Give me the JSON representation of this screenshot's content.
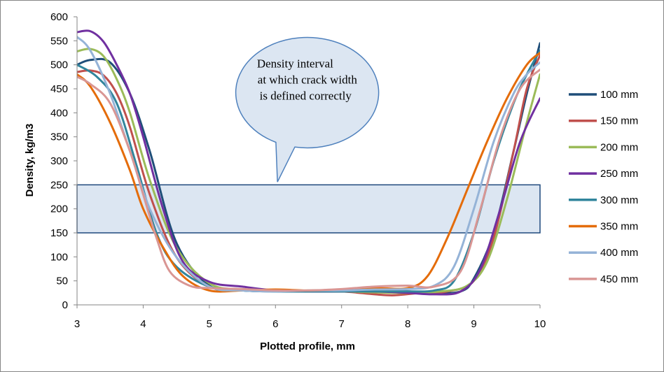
{
  "chart_data": {
    "type": "line",
    "xlabel": "Plotted profile, mm",
    "ylabel": "Density, kg/m3",
    "xlim": [
      3,
      10
    ],
    "ylim": [
      0,
      600
    ],
    "xticks": [
      3,
      4,
      5,
      6,
      7,
      8,
      9,
      10
    ],
    "yticks": [
      0,
      50,
      100,
      150,
      200,
      250,
      300,
      350,
      400,
      450,
      500,
      550,
      600
    ],
    "grid": false,
    "legend_position": "right",
    "band": {
      "y_min": 150,
      "y_max": 250,
      "fill": "#dce6f2",
      "stroke": "#1f497d"
    },
    "annotation": {
      "lines": [
        "Density interval",
        "at which crack width",
        "is defined correctly"
      ],
      "fill": "#dce6f2",
      "stroke": "#4f81bd"
    },
    "series": [
      {
        "name": "100 mm",
        "color": "#1f4e79",
        "x": [
          3,
          3.2,
          3.5,
          3.8,
          4.1,
          4.5,
          5,
          5.5,
          6,
          6.5,
          7,
          7.5,
          8,
          8.4,
          8.8,
          9,
          9.3,
          9.6,
          9.8,
          10
        ],
        "y": [
          500,
          510,
          505,
          440,
          320,
          130,
          40,
          30,
          28,
          28,
          28,
          28,
          28,
          25,
          28,
          55,
          150,
          320,
          440,
          545
        ]
      },
      {
        "name": "150 mm",
        "color": "#c0504d",
        "x": [
          3,
          3.2,
          3.4,
          3.6,
          3.8,
          4.1,
          4.5,
          5,
          5.5,
          6,
          6.5,
          7,
          7.5,
          7.8,
          8.2,
          8.6,
          9,
          9.3,
          9.6,
          9.8,
          10
        ],
        "y": [
          485,
          488,
          478,
          440,
          370,
          230,
          100,
          38,
          32,
          31,
          28,
          28,
          22,
          20,
          25,
          28,
          50,
          140,
          320,
          450,
          520
        ]
      },
      {
        "name": "200 mm",
        "color": "#9bbb59",
        "x": [
          3,
          3.2,
          3.4,
          3.6,
          3.8,
          4.1,
          4.5,
          5,
          5.5,
          6,
          6.5,
          7,
          7.5,
          8,
          8.5,
          8.9,
          9.2,
          9.5,
          9.8,
          10
        ],
        "y": [
          528,
          533,
          518,
          470,
          400,
          260,
          120,
          45,
          32,
          30,
          28,
          28,
          26,
          25,
          28,
          40,
          90,
          220,
          380,
          480
        ]
      },
      {
        "name": "250 mm",
        "color": "#7030a0",
        "x": [
          3,
          3.2,
          3.4,
          3.6,
          3.8,
          4,
          4.3,
          4.6,
          5,
          5.5,
          6,
          6.5,
          7,
          7.5,
          8,
          8.4,
          8.8,
          9.1,
          9.4,
          9.7,
          10
        ],
        "y": [
          568,
          570,
          548,
          500,
          440,
          350,
          200,
          90,
          48,
          38,
          30,
          28,
          28,
          28,
          25,
          22,
          28,
          75,
          200,
          340,
          430
        ]
      },
      {
        "name": "300 mm",
        "color": "#31859c",
        "x": [
          3,
          3.3,
          3.6,
          3.9,
          4.2,
          4.5,
          5,
          5.5,
          6,
          6.5,
          7,
          7.5,
          8,
          8.4,
          8.7,
          9,
          9.3,
          9.6,
          9.8,
          10
        ],
        "y": [
          500,
          475,
          420,
          290,
          150,
          80,
          38,
          30,
          28,
          28,
          28,
          28,
          28,
          30,
          50,
          150,
          300,
          420,
          480,
          530
        ]
      },
      {
        "name": "350 mm",
        "color": "#e46c0a",
        "x": [
          3,
          3.2,
          3.5,
          3.8,
          4,
          4.3,
          4.6,
          5,
          5.5,
          6,
          6.5,
          7,
          7.5,
          8,
          8.3,
          8.6,
          8.9,
          9.2,
          9.5,
          9.8,
          10
        ],
        "y": [
          480,
          455,
          380,
          280,
          200,
          120,
          60,
          30,
          30,
          32,
          30,
          32,
          35,
          35,
          60,
          140,
          240,
          340,
          430,
          500,
          525
        ]
      },
      {
        "name": "400 mm",
        "color": "#95b3d7",
        "x": [
          3,
          3.2,
          3.5,
          3.8,
          4.1,
          4.5,
          5,
          5.5,
          6,
          6.5,
          7,
          7.5,
          8,
          8.4,
          8.7,
          9,
          9.3,
          9.6,
          9.8,
          10
        ],
        "y": [
          558,
          530,
          440,
          320,
          200,
          100,
          38,
          30,
          28,
          30,
          30,
          32,
          33,
          40,
          80,
          200,
          340,
          440,
          480,
          505
        ]
      },
      {
        "name": "450 mm",
        "color": "#d99694",
        "x": [
          3,
          3.2,
          3.5,
          3.8,
          4,
          4.2,
          4.4,
          4.7,
          5,
          5.5,
          6,
          6.5,
          7,
          7.5,
          8,
          8.4,
          8.8,
          9.1,
          9.4,
          9.7,
          10
        ],
        "y": [
          475,
          460,
          420,
          320,
          230,
          140,
          70,
          40,
          35,
          33,
          30,
          30,
          33,
          38,
          40,
          38,
          70,
          200,
          350,
          450,
          490
        ]
      }
    ]
  }
}
